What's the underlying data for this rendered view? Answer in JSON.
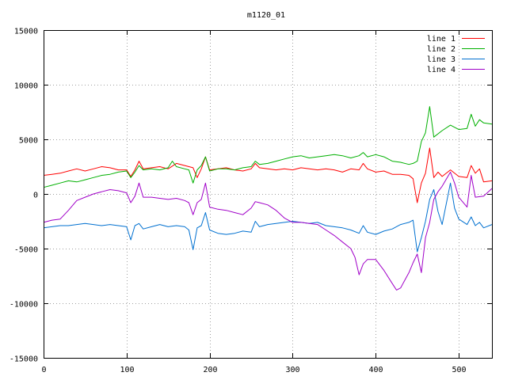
{
  "chart_data": {
    "type": "line",
    "title": "m1120_01",
    "xlabel": "",
    "ylabel": "",
    "xlim": [
      0,
      540
    ],
    "ylim": [
      -15000,
      15000
    ],
    "grid": true,
    "legend_position": "top-right",
    "x_ticks": [
      0,
      100,
      200,
      300,
      400,
      500
    ],
    "y_ticks": [
      -15000,
      -10000,
      -5000,
      0,
      5000,
      10000,
      15000
    ],
    "x_tick_labels": [
      "0",
      "100",
      "200",
      "300",
      "400",
      "500"
    ],
    "y_tick_labels": [
      "-15000",
      "-10000",
      "-5000",
      "0",
      "5000",
      "10000",
      "15000"
    ],
    "series": [
      {
        "name": "line 1",
        "color": "#ff0000",
        "points": [
          [
            0,
            1700
          ],
          [
            10,
            1800
          ],
          [
            20,
            1900
          ],
          [
            30,
            2100
          ],
          [
            40,
            2300
          ],
          [
            50,
            2100
          ],
          [
            60,
            2300
          ],
          [
            70,
            2500
          ],
          [
            80,
            2400
          ],
          [
            90,
            2200
          ],
          [
            100,
            2200
          ],
          [
            105,
            1600
          ],
          [
            110,
            2200
          ],
          [
            115,
            3000
          ],
          [
            120,
            2300
          ],
          [
            130,
            2400
          ],
          [
            140,
            2500
          ],
          [
            150,
            2300
          ],
          [
            160,
            2800
          ],
          [
            170,
            2600
          ],
          [
            180,
            2400
          ],
          [
            185,
            1500
          ],
          [
            190,
            2300
          ],
          [
            195,
            3400
          ],
          [
            200,
            2200
          ],
          [
            210,
            2300
          ],
          [
            220,
            2400
          ],
          [
            230,
            2200
          ],
          [
            240,
            2100
          ],
          [
            250,
            2300
          ],
          [
            255,
            2800
          ],
          [
            260,
            2400
          ],
          [
            270,
            2300
          ],
          [
            280,
            2200
          ],
          [
            290,
            2300
          ],
          [
            300,
            2200
          ],
          [
            310,
            2400
          ],
          [
            320,
            2300
          ],
          [
            330,
            2200
          ],
          [
            340,
            2300
          ],
          [
            350,
            2200
          ],
          [
            360,
            2000
          ],
          [
            370,
            2300
          ],
          [
            380,
            2200
          ],
          [
            385,
            2800
          ],
          [
            390,
            2300
          ],
          [
            400,
            2000
          ],
          [
            410,
            2100
          ],
          [
            420,
            1800
          ],
          [
            430,
            1800
          ],
          [
            440,
            1700
          ],
          [
            445,
            1400
          ],
          [
            450,
            -800
          ],
          [
            455,
            1000
          ],
          [
            460,
            1900
          ],
          [
            465,
            4200
          ],
          [
            470,
            1500
          ],
          [
            475,
            2000
          ],
          [
            480,
            1600
          ],
          [
            490,
            2200
          ],
          [
            500,
            1600
          ],
          [
            510,
            1500
          ],
          [
            515,
            2600
          ],
          [
            520,
            1900
          ],
          [
            525,
            2300
          ],
          [
            530,
            1100
          ],
          [
            540,
            1200
          ]
        ]
      },
      {
        "name": "line 2",
        "color": "#00b000",
        "points": [
          [
            0,
            600
          ],
          [
            10,
            800
          ],
          [
            20,
            1000
          ],
          [
            30,
            1200
          ],
          [
            40,
            1100
          ],
          [
            50,
            1300
          ],
          [
            60,
            1500
          ],
          [
            70,
            1700
          ],
          [
            80,
            1800
          ],
          [
            90,
            2000
          ],
          [
            100,
            2100
          ],
          [
            105,
            1500
          ],
          [
            110,
            2000
          ],
          [
            115,
            2600
          ],
          [
            120,
            2200
          ],
          [
            130,
            2300
          ],
          [
            140,
            2200
          ],
          [
            150,
            2400
          ],
          [
            155,
            3000
          ],
          [
            160,
            2500
          ],
          [
            170,
            2300
          ],
          [
            175,
            2200
          ],
          [
            180,
            1000
          ],
          [
            185,
            2200
          ],
          [
            190,
            2600
          ],
          [
            195,
            3400
          ],
          [
            200,
            2100
          ],
          [
            210,
            2300
          ],
          [
            220,
            2300
          ],
          [
            230,
            2200
          ],
          [
            240,
            2400
          ],
          [
            250,
            2500
          ],
          [
            255,
            3000
          ],
          [
            260,
            2700
          ],
          [
            270,
            2800
          ],
          [
            280,
            3000
          ],
          [
            290,
            3200
          ],
          [
            300,
            3400
          ],
          [
            310,
            3500
          ],
          [
            320,
            3300
          ],
          [
            330,
            3400
          ],
          [
            340,
            3500
          ],
          [
            350,
            3600
          ],
          [
            360,
            3500
          ],
          [
            370,
            3300
          ],
          [
            380,
            3500
          ],
          [
            385,
            3800
          ],
          [
            390,
            3400
          ],
          [
            400,
            3600
          ],
          [
            410,
            3400
          ],
          [
            420,
            3000
          ],
          [
            430,
            2900
          ],
          [
            440,
            2700
          ],
          [
            445,
            2800
          ],
          [
            450,
            3000
          ],
          [
            455,
            4800
          ],
          [
            460,
            5600
          ],
          [
            465,
            8000
          ],
          [
            470,
            5200
          ],
          [
            480,
            5800
          ],
          [
            490,
            6300
          ],
          [
            500,
            5900
          ],
          [
            510,
            6000
          ],
          [
            515,
            7300
          ],
          [
            520,
            6200
          ],
          [
            525,
            6800
          ],
          [
            530,
            6500
          ],
          [
            540,
            6400
          ]
        ]
      },
      {
        "name": "line 3",
        "color": "#0070d0",
        "points": [
          [
            0,
            -3100
          ],
          [
            10,
            -3000
          ],
          [
            20,
            -2900
          ],
          [
            30,
            -2900
          ],
          [
            40,
            -2800
          ],
          [
            50,
            -2700
          ],
          [
            60,
            -2800
          ],
          [
            70,
            -2900
          ],
          [
            80,
            -2800
          ],
          [
            90,
            -2900
          ],
          [
            100,
            -3000
          ],
          [
            105,
            -4200
          ],
          [
            110,
            -2900
          ],
          [
            115,
            -2700
          ],
          [
            120,
            -3200
          ],
          [
            130,
            -3000
          ],
          [
            140,
            -2800
          ],
          [
            150,
            -3000
          ],
          [
            160,
            -2900
          ],
          [
            170,
            -3000
          ],
          [
            175,
            -3300
          ],
          [
            180,
            -5100
          ],
          [
            185,
            -3100
          ],
          [
            190,
            -2900
          ],
          [
            195,
            -1700
          ],
          [
            200,
            -3300
          ],
          [
            210,
            -3600
          ],
          [
            220,
            -3700
          ],
          [
            230,
            -3600
          ],
          [
            240,
            -3400
          ],
          [
            250,
            -3500
          ],
          [
            255,
            -2500
          ],
          [
            260,
            -3000
          ],
          [
            270,
            -2800
          ],
          [
            280,
            -2700
          ],
          [
            290,
            -2600
          ],
          [
            300,
            -2500
          ],
          [
            310,
            -2600
          ],
          [
            320,
            -2700
          ],
          [
            330,
            -2600
          ],
          [
            340,
            -2900
          ],
          [
            350,
            -3000
          ],
          [
            360,
            -3100
          ],
          [
            370,
            -3300
          ],
          [
            380,
            -3600
          ],
          [
            385,
            -2900
          ],
          [
            390,
            -3500
          ],
          [
            400,
            -3700
          ],
          [
            410,
            -3400
          ],
          [
            420,
            -3200
          ],
          [
            430,
            -2800
          ],
          [
            440,
            -2600
          ],
          [
            445,
            -2400
          ],
          [
            450,
            -5300
          ],
          [
            455,
            -4000
          ],
          [
            460,
            -2500
          ],
          [
            465,
            -500
          ],
          [
            470,
            400
          ],
          [
            475,
            -1600
          ],
          [
            480,
            -2800
          ],
          [
            490,
            1000
          ],
          [
            495,
            -1300
          ],
          [
            500,
            -2300
          ],
          [
            510,
            -2800
          ],
          [
            515,
            -2100
          ],
          [
            520,
            -2900
          ],
          [
            525,
            -2600
          ],
          [
            530,
            -3100
          ],
          [
            540,
            -2800
          ]
        ]
      },
      {
        "name": "line 4",
        "color": "#a000c8",
        "points": [
          [
            0,
            -2600
          ],
          [
            10,
            -2400
          ],
          [
            20,
            -2300
          ],
          [
            30,
            -1500
          ],
          [
            40,
            -600
          ],
          [
            50,
            -300
          ],
          [
            60,
            0
          ],
          [
            70,
            200
          ],
          [
            80,
            400
          ],
          [
            90,
            300
          ],
          [
            100,
            100
          ],
          [
            105,
            -800
          ],
          [
            110,
            -200
          ],
          [
            115,
            1000
          ],
          [
            120,
            -300
          ],
          [
            130,
            -300
          ],
          [
            140,
            -400
          ],
          [
            150,
            -500
          ],
          [
            160,
            -400
          ],
          [
            170,
            -600
          ],
          [
            175,
            -800
          ],
          [
            180,
            -1900
          ],
          [
            185,
            -800
          ],
          [
            190,
            -500
          ],
          [
            195,
            1000
          ],
          [
            200,
            -1200
          ],
          [
            210,
            -1400
          ],
          [
            220,
            -1500
          ],
          [
            230,
            -1700
          ],
          [
            240,
            -1900
          ],
          [
            250,
            -1300
          ],
          [
            255,
            -700
          ],
          [
            260,
            -800
          ],
          [
            270,
            -1000
          ],
          [
            280,
            -1500
          ],
          [
            290,
            -2200
          ],
          [
            300,
            -2600
          ],
          [
            310,
            -2600
          ],
          [
            320,
            -2700
          ],
          [
            330,
            -2800
          ],
          [
            340,
            -3300
          ],
          [
            350,
            -3800
          ],
          [
            360,
            -4400
          ],
          [
            370,
            -5000
          ],
          [
            375,
            -5800
          ],
          [
            380,
            -7400
          ],
          [
            385,
            -6400
          ],
          [
            390,
            -6000
          ],
          [
            400,
            -6000
          ],
          [
            410,
            -7000
          ],
          [
            420,
            -8200
          ],
          [
            425,
            -8800
          ],
          [
            430,
            -8600
          ],
          [
            440,
            -7200
          ],
          [
            445,
            -6300
          ],
          [
            450,
            -5500
          ],
          [
            455,
            -7200
          ],
          [
            460,
            -4000
          ],
          [
            465,
            -2600
          ],
          [
            470,
            -500
          ],
          [
            475,
            200
          ],
          [
            480,
            700
          ],
          [
            490,
            2000
          ],
          [
            495,
            1000
          ],
          [
            500,
            -300
          ],
          [
            510,
            -1200
          ],
          [
            515,
            1700
          ],
          [
            520,
            -300
          ],
          [
            530,
            -200
          ],
          [
            540,
            500
          ]
        ]
      }
    ]
  }
}
